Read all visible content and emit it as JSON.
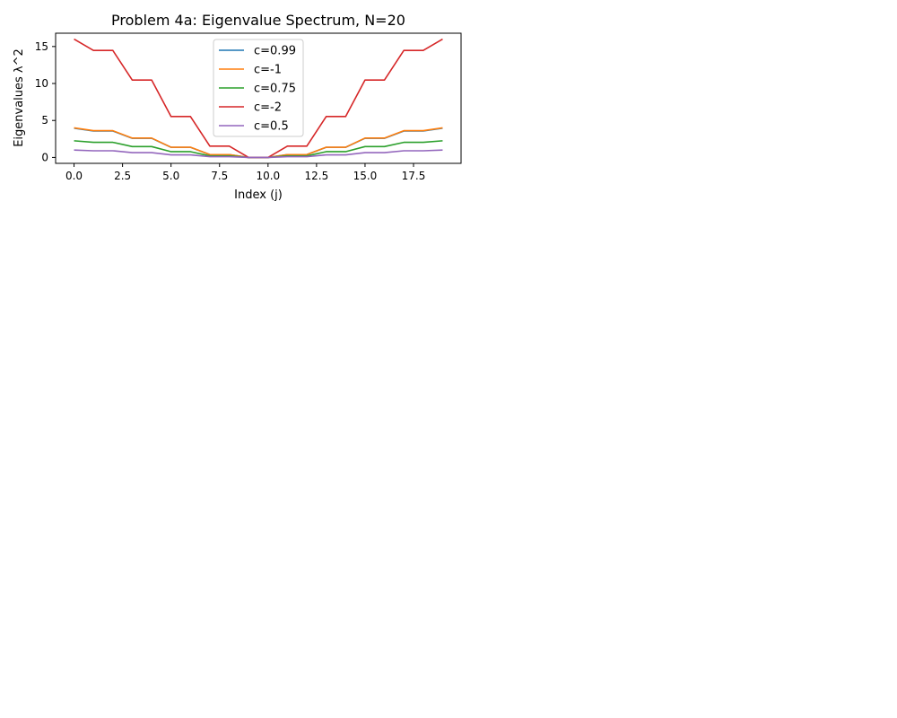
{
  "chart_data": {
    "type": "line",
    "title": "Problem 4a: Eigenvalue Spectrum, N=20",
    "xlabel": "Index (j)",
    "ylabel": "Eigenvalues λ^2",
    "xlim": [
      -0.95,
      19.95
    ],
    "ylim": [
      -0.8,
      16.8
    ],
    "xticks": [
      0.0,
      2.5,
      5.0,
      7.5,
      10.0,
      12.5,
      15.0,
      17.5
    ],
    "xtick_labels": [
      "0.0",
      "2.5",
      "5.0",
      "7.5",
      "10.0",
      "12.5",
      "15.0",
      "17.5"
    ],
    "yticks": [
      0,
      5,
      10,
      15
    ],
    "ytick_labels": [
      "0",
      "5",
      "10",
      "15"
    ],
    "grid": false,
    "legend_position": "top-center",
    "x": [
      0,
      1,
      2,
      3,
      4,
      5,
      6,
      7,
      8,
      9,
      10,
      11,
      12,
      13,
      14,
      15,
      16,
      17,
      18,
      19
    ],
    "series": [
      {
        "name": "c=0.99",
        "color": "#1f77b4",
        "values": [
          3.96,
          3.57,
          3.57,
          2.59,
          2.59,
          1.37,
          1.37,
          0.38,
          0.38,
          0.0,
          0.0,
          0.38,
          0.38,
          1.37,
          1.37,
          2.59,
          2.59,
          3.57,
          3.57,
          3.96
        ]
      },
      {
        "name": "c=-1",
        "color": "#ff7f0e",
        "values": [
          4.0,
          3.62,
          3.62,
          2.62,
          2.62,
          1.38,
          1.38,
          0.38,
          0.38,
          0.0,
          0.0,
          0.38,
          0.38,
          1.38,
          1.38,
          2.62,
          2.62,
          3.62,
          3.62,
          4.0
        ]
      },
      {
        "name": "c=0.75",
        "color": "#2ca02c",
        "values": [
          2.25,
          2.04,
          2.04,
          1.47,
          1.47,
          0.78,
          0.78,
          0.21,
          0.21,
          0.0,
          0.0,
          0.21,
          0.21,
          0.78,
          0.78,
          1.47,
          1.47,
          2.04,
          2.04,
          2.25
        ]
      },
      {
        "name": "c=-2",
        "color": "#d62728",
        "values": [
          16.0,
          14.47,
          14.47,
          10.47,
          10.47,
          5.53,
          5.53,
          1.53,
          1.53,
          0.0,
          0.0,
          1.53,
          1.53,
          5.53,
          5.53,
          10.47,
          10.47,
          14.47,
          14.47,
          16.0
        ]
      },
      {
        "name": "c=0.5",
        "color": "#9467bd",
        "values": [
          1.0,
          0.9,
          0.9,
          0.65,
          0.65,
          0.35,
          0.35,
          0.1,
          0.1,
          0.0,
          0.0,
          0.1,
          0.1,
          0.35,
          0.35,
          0.65,
          0.65,
          0.9,
          0.9,
          1.0
        ]
      }
    ]
  }
}
